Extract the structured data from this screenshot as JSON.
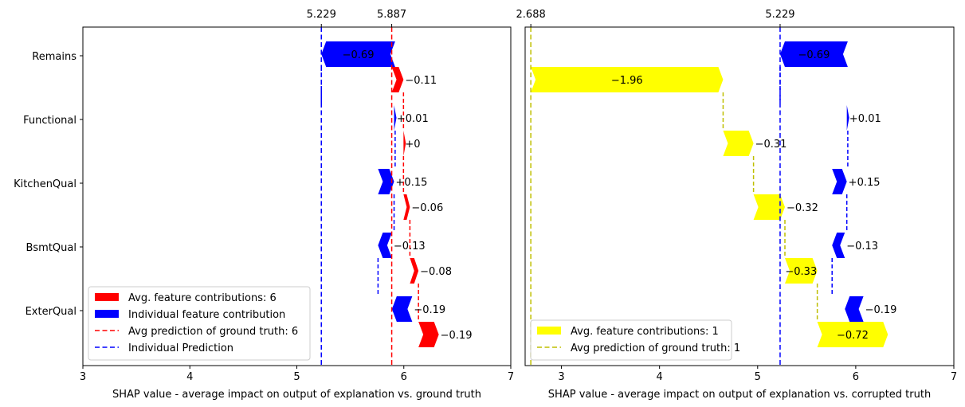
{
  "chart_data": [
    {
      "type": "waterfall-bar",
      "xlabel": "SHAP value - average impact on output of explanation vs. ground truth",
      "xlim": [
        3,
        7
      ],
      "xticks": [
        "3",
        "4",
        "5",
        "6",
        "7"
      ],
      "xtick_values": [
        3,
        4,
        5,
        6,
        7
      ],
      "top_ticks": [
        {
          "value": 5.229,
          "label": "5.229"
        },
        {
          "value": 5.887,
          "label": "5.887"
        }
      ],
      "categories": [
        "Remains",
        "Functional",
        "KitchenQual",
        "BsmtQual",
        "ExterQual"
      ],
      "ref_lines": [
        {
          "name": "avg-prediction-line",
          "value": 5.887,
          "color": "#ff0000"
        },
        {
          "name": "individual-prediction-line",
          "value": 5.229,
          "color": "#0000ff"
        }
      ],
      "series": [
        {
          "name": "Avg. feature contributions: 6",
          "color": "#ff0000",
          "bars": [
            {
              "feature": "Remains",
              "start": 5.887,
              "end": 5.997,
              "label": "−0.11"
            },
            {
              "feature": "Functional",
              "start": 5.997,
              "end": 5.997,
              "label": "+0"
            },
            {
              "feature": "KitchenQual",
              "start": 5.997,
              "end": 6.057,
              "label": "−0.06"
            },
            {
              "feature": "BsmtQual",
              "start": 6.057,
              "end": 6.137,
              "label": "−0.08"
            },
            {
              "feature": "ExterQual",
              "start": 6.137,
              "end": 6.327,
              "label": "−0.19"
            }
          ]
        },
        {
          "name": "Individual feature contribution",
          "color": "#0000ff",
          "bars": [
            {
              "feature": "Remains",
              "start": 5.919,
              "end": 5.229,
              "label": "−0.69"
            },
            {
              "feature": "Functional",
              "start": 5.909,
              "end": 5.919,
              "label": "+0.01"
            },
            {
              "feature": "KitchenQual",
              "start": 5.759,
              "end": 5.909,
              "label": "+0.15"
            },
            {
              "feature": "BsmtQual",
              "start": 5.889,
              "end": 5.759,
              "label": "−0.13"
            },
            {
              "feature": "ExterQual",
              "start": 6.079,
              "end": 5.889,
              "label": "−0.19"
            }
          ]
        }
      ],
      "legend": {
        "placement": "lower-left",
        "entries": [
          {
            "label": "Avg. feature contributions: 6",
            "kind": "patch",
            "color": "#ff0000"
          },
          {
            "label": "Individual feature contribution",
            "kind": "patch",
            "color": "#0000ff"
          },
          {
            "label": "Avg prediction of ground truth: 6",
            "kind": "line",
            "color": "#ff0000"
          },
          {
            "label": "Individual Prediction",
            "kind": "line",
            "color": "#0000ff"
          }
        ]
      }
    },
    {
      "type": "waterfall-bar",
      "xlabel": "SHAP value - average impact on output of explanation vs. corrupted truth",
      "xlim": [
        2.63,
        7
      ],
      "xticks": [
        "3",
        "4",
        "5",
        "6",
        "7"
      ],
      "xtick_values": [
        3,
        4,
        5,
        6,
        7
      ],
      "top_ticks": [
        {
          "value": 2.688,
          "label": "2.688"
        },
        {
          "value": 5.229,
          "label": "5.229"
        }
      ],
      "categories": [
        "Remains",
        "Functional",
        "KitchenQual",
        "BsmtQual",
        "ExterQual"
      ],
      "ref_lines": [
        {
          "name": "avg-prediction-line",
          "value": 2.688,
          "color": "#bfbf00"
        },
        {
          "name": "individual-prediction-line",
          "value": 5.229,
          "color": "#0000ff"
        }
      ],
      "series": [
        {
          "name": "Avg. feature contributions: 1",
          "color": "#ffff00",
          "bars": [
            {
              "feature": "Remains",
              "start": 2.688,
              "end": 4.648,
              "label": "−1.96"
            },
            {
              "feature": "Functional",
              "start": 4.648,
              "end": 4.958,
              "label": "−0.31"
            },
            {
              "feature": "KitchenQual",
              "start": 4.958,
              "end": 5.278,
              "label": "−0.32"
            },
            {
              "feature": "BsmtQual",
              "start": 5.278,
              "end": 5.608,
              "label": "−0.33"
            },
            {
              "feature": "ExterQual",
              "start": 5.608,
              "end": 6.328,
              "label": "−0.72"
            }
          ]
        },
        {
          "name": "Individual feature contribution",
          "color": "#0000ff",
          "bars": [
            {
              "feature": "Remains",
              "start": 5.919,
              "end": 5.229,
              "label": "−0.69"
            },
            {
              "feature": "Functional",
              "start": 5.909,
              "end": 5.919,
              "label": "+0.01"
            },
            {
              "feature": "KitchenQual",
              "start": 5.759,
              "end": 5.909,
              "label": "+0.15"
            },
            {
              "feature": "BsmtQual",
              "start": 5.889,
              "end": 5.759,
              "label": "−0.13"
            },
            {
              "feature": "ExterQual",
              "start": 6.079,
              "end": 5.889,
              "label": "−0.19"
            }
          ]
        }
      ],
      "legend": {
        "placement": "lower-left",
        "entries": [
          {
            "label": "Avg. feature contributions: 1",
            "kind": "patch",
            "color": "#ffff00"
          },
          {
            "label": "Avg prediction of ground truth: 1",
            "kind": "line",
            "color": "#bfbf00"
          }
        ]
      }
    }
  ]
}
